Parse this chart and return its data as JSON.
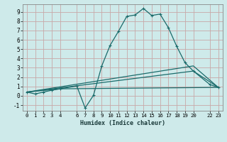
{
  "xlabel": "Humidex (Indice chaleur)",
  "bg_color": "#ceeaea",
  "grid_color": "#c8a8a8",
  "line_color": "#1a6b6b",
  "xlim": [
    -0.5,
    23.5
  ],
  "ylim": [
    -1.6,
    9.8
  ],
  "xticks": [
    0,
    1,
    2,
    3,
    4,
    6,
    7,
    8,
    9,
    10,
    11,
    12,
    13,
    14,
    15,
    16,
    17,
    18,
    19,
    20,
    22,
    23
  ],
  "yticks": [
    -1,
    0,
    1,
    2,
    3,
    4,
    5,
    6,
    7,
    8,
    9
  ],
  "series1": [
    [
      0,
      0.4
    ],
    [
      1,
      0.2
    ],
    [
      2,
      0.4
    ],
    [
      3,
      0.6
    ],
    [
      4,
      0.75
    ],
    [
      6,
      1.05
    ],
    [
      7,
      -1.3
    ],
    [
      8,
      0.05
    ],
    [
      9,
      3.2
    ],
    [
      10,
      5.4
    ],
    [
      11,
      6.9
    ],
    [
      12,
      8.5
    ],
    [
      13,
      8.65
    ],
    [
      14,
      9.35
    ],
    [
      15,
      8.6
    ],
    [
      16,
      8.75
    ],
    [
      17,
      7.3
    ],
    [
      18,
      5.3
    ],
    [
      19,
      3.55
    ],
    [
      20,
      2.65
    ],
    [
      22,
      1.2
    ],
    [
      23,
      0.9
    ]
  ],
  "series2": [
    [
      0,
      0.4
    ],
    [
      4,
      0.75
    ],
    [
      23,
      0.9
    ]
  ],
  "series3": [
    [
      0,
      0.4
    ],
    [
      20,
      3.2
    ],
    [
      23,
      0.9
    ]
  ],
  "series4": [
    [
      0,
      0.4
    ],
    [
      20,
      2.65
    ],
    [
      23,
      0.9
    ]
  ]
}
